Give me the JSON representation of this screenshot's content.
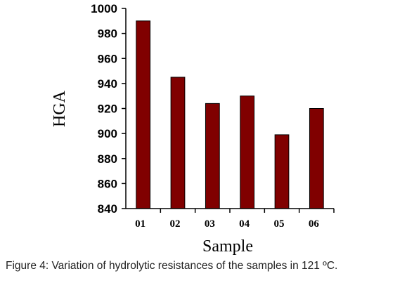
{
  "caption": "Figure 4: Variation of hydrolytic resistances of the samples in 121 ºC.",
  "colors": {
    "bar_fill": "#800000",
    "bar_stroke": "#000000",
    "axis": "#000000"
  },
  "chart_data": {
    "type": "bar",
    "categories": [
      "01",
      "02",
      "03",
      "04",
      "05",
      "06"
    ],
    "values": [
      990,
      945,
      924,
      930,
      899,
      920
    ],
    "xlabel": "Sample",
    "ylabel": "HGA",
    "ylim": [
      840,
      1000
    ],
    "yticks": [
      "840",
      "860",
      "880",
      "900",
      "920",
      "940",
      "960",
      "980",
      "1000"
    ],
    "grid": false,
    "legend": "none"
  }
}
